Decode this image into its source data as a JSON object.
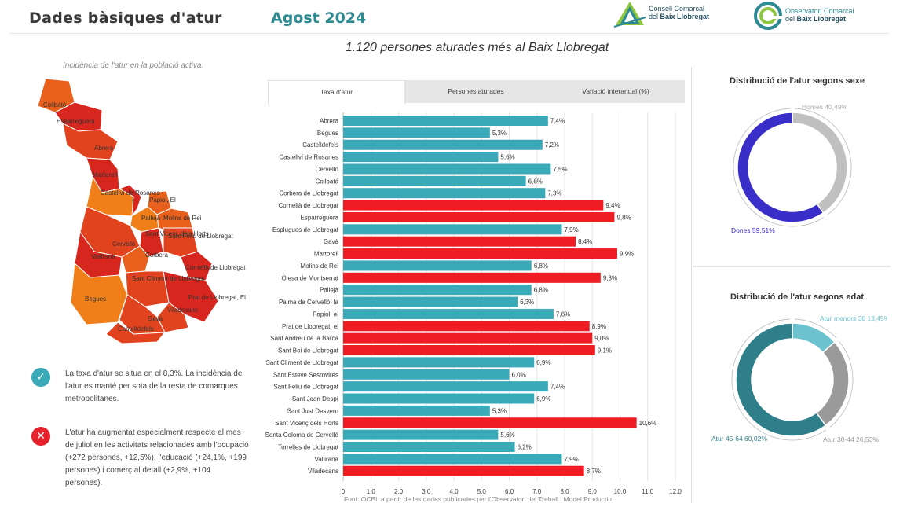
{
  "header": {
    "title": "Dades bàsiques d'atur",
    "period": "Agost 2024",
    "logo1": {
      "line1": "Consell Comarcal",
      "line2_prefix": "del ",
      "line2_bold": "Baix Llobregat"
    },
    "logo2": {
      "line1": "Observatori Comarcal",
      "line2_prefix": "del ",
      "line2_bold": "Baix Llobregat"
    }
  },
  "headline": "1.120 persones aturades més al Baix Llobregat",
  "map": {
    "caption": "Incidència de l'atur en la població activa.",
    "labels": [
      "Collbató",
      "Esparreguera",
      "Abrera",
      "Martorell",
      "Castellví de Rosanes",
      "Papiol, El",
      "Pallejà",
      "Molins de Rei",
      "Sant Vicenç dels Horts",
      "Sant Feliu de Llobregat",
      "Cervelló",
      "Vallirana",
      "Corbera",
      "Cornellà de Llobregat",
      "Sant Climent de Llobregat",
      "Begues",
      "Prat de Llobregat, El",
      "Viladecans",
      "Gavà",
      "Castelldefels"
    ],
    "colors": {
      "high": "#d7261e",
      "mid_high": "#e2431f",
      "mid": "#e8601c",
      "low": "#f07f1a"
    }
  },
  "notes": [
    {
      "icon": "check-icon",
      "text": "La taxa d'atur se situa en el 8,3%. La incidència de l'atur es manté per sota de la resta de comarques metropolitanes."
    },
    {
      "icon": "cross-icon",
      "text": "L'atur ha augmentat especialment respecte al mes de juliol en les activitats relacionades amb l'ocupació (+272 persones, +12,5%), l'educació (+24,1%, +199 persones) i comerç al detall  (+2,9%, +104 persones)."
    }
  ],
  "tabs": [
    {
      "label": "Taxa d'atur",
      "active": true
    },
    {
      "label": "Persones aturades",
      "active": false
    },
    {
      "label": "Variació interanual (%)",
      "active": false
    }
  ],
  "chart_data": [
    {
      "type": "bar",
      "orientation": "horizontal",
      "title": "",
      "xlabel": "",
      "ylabel": "",
      "xlim": [
        0,
        12
      ],
      "xticks": [
        "0",
        "1,0",
        "2,0",
        "3,0",
        "4,0",
        "5,0",
        "6,0",
        "7,0",
        "8,0",
        "9,0",
        "10,0",
        "11,0",
        "12,0"
      ],
      "grid": true,
      "categories": [
        "Abrera",
        "Begues",
        "Castelldefels",
        "Castellví de Rosanes",
        "Cervelló",
        "Collbató",
        "Corbera de Llobregat",
        "Cornellà de Llobregat",
        "Esparreguera",
        "Esplugues de Llobregat",
        "Gavà",
        "Martorell",
        "Molins de Rei",
        "Olesa de Montserrat",
        "Pallejà",
        "Palma de Cervelló, la",
        "Papiol, el",
        "Prat de Llobregat, el",
        "Sant Andreu de la Barca",
        "Sant Boi de Llobregat",
        "Sant Climent de Llobregat",
        "Sant Esteve Sesrovires",
        "Sant Feliu de Llobregat",
        "Sant Joan Despí",
        "Sant Just Desvern",
        "Sant Vicenç dels Horts",
        "Santa Coloma de Cervelló",
        "Torrelles de Llobregat",
        "Vallirana",
        "Viladecans"
      ],
      "values": [
        7.4,
        5.3,
        7.2,
        5.6,
        7.5,
        6.6,
        7.3,
        9.4,
        9.8,
        7.9,
        8.4,
        9.9,
        6.8,
        9.3,
        6.8,
        6.3,
        7.6,
        8.9,
        9.0,
        9.1,
        6.9,
        6.0,
        7.4,
        6.9,
        5.3,
        10.6,
        5.6,
        6.2,
        7.9,
        8.7
      ],
      "labels": [
        "7,4%",
        "5,3%",
        "7,2%",
        "5,6%",
        "7,5%",
        "6,6%",
        "7,3%",
        "9,4%",
        "9,8%",
        "7,9%",
        "8,4%",
        "9,9%",
        "6,8%",
        "9,3%",
        "6,8%",
        "6,3%",
        "7,6%",
        "8,9%",
        "9,0%",
        "9,1%",
        "6,9%",
        "6,0%",
        "7,4%",
        "6,9%",
        "5,3%",
        "10,6%",
        "5,6%",
        "6,2%",
        "7,9%",
        "8,7%"
      ],
      "highlight_threshold": 8.3,
      "colors": {
        "below": "#3aa9b8",
        "above": "#ee1c23"
      },
      "source": "Font: OCBL a partir de les dades publicades per l'Observatori del Treball i Model Productiu."
    },
    {
      "type": "pie",
      "donut": true,
      "title": "Distribució de l'atur segons sexe",
      "slices": [
        {
          "name": "Homes",
          "value": 40.49,
          "label": "Homes 40,49%",
          "color": "#c0c0c0"
        },
        {
          "name": "Dones",
          "value": 59.51,
          "label": "Dones 59,51%",
          "color": "#3a2ec8"
        }
      ]
    },
    {
      "type": "pie",
      "donut": true,
      "title": "Distribució de l'atur segons edat",
      "slices": [
        {
          "name": "Atur menors 30",
          "value": 13.45,
          "label": "Atur menors 30 13,45%",
          "color": "#6cc3cf"
        },
        {
          "name": "Atur 30-44",
          "value": 26.53,
          "label": "Atur 30-44 26,53%",
          "color": "#9a9a9a"
        },
        {
          "name": "Atur 45-64",
          "value": 60.02,
          "label": "Atur 45-64 60,02%",
          "color": "#2f7f8b"
        }
      ]
    }
  ]
}
